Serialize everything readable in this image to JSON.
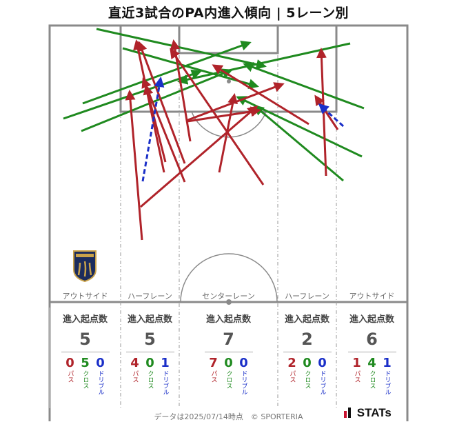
{
  "title": "直近3試合のPA内進入傾向 | 5レーン別",
  "lanes": [
    {
      "label": "アウトサイド",
      "stat_title": "進入起点数",
      "total": "5",
      "pass": "0",
      "cross": "5",
      "dribble": "0"
    },
    {
      "label": "ハーフレーン",
      "stat_title": "進入起点数",
      "total": "5",
      "pass": "4",
      "cross": "0",
      "dribble": "1"
    },
    {
      "label": "センターレーン",
      "stat_title": "進入起点数",
      "total": "7",
      "pass": "7",
      "cross": "0",
      "dribble": "0"
    },
    {
      "label": "ハーフレーン",
      "stat_title": "進入起点数",
      "total": "2",
      "pass": "2",
      "cross": "0",
      "dribble": "0"
    },
    {
      "label": "アウトサイド",
      "stat_title": "進入起点数",
      "total": "6",
      "pass": "1",
      "cross": "4",
      "dribble": "1"
    }
  ],
  "type_labels": {
    "pass": "パス",
    "cross": "クロス",
    "dribble": "ドリブル"
  },
  "colors": {
    "pass": "#b0232a",
    "cross": "#1f8a1f",
    "dribble": "#1a2fc8",
    "pitch_line": "#8a8a8a"
  },
  "footer": "データは2025/07/14時点　© SPORTERIA",
  "logo_text": "STATs",
  "team_badge_text": "GUNMA",
  "icons": {
    "team_badge": "thespa-gunma-crest-icon",
    "stats_logo": "stats-logo-icon"
  }
}
